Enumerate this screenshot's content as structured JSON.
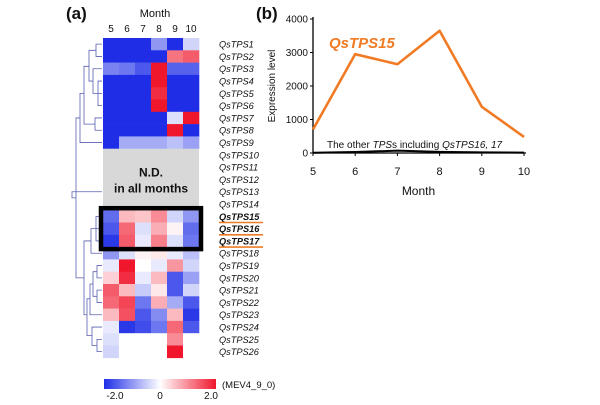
{
  "colors": {
    "accent": "#f07b24",
    "frame": "#000000",
    "nd_fill": "#d8d8d8",
    "low": "#1f2ee6",
    "mid": "#ffffff",
    "high": "#f0162c",
    "dendrogram": "#5a5fb0"
  },
  "chart_data": [
    {
      "type": "heatmap",
      "panel_label": "(a)",
      "x_title": "Month",
      "columns": [
        "5",
        "6",
        "7",
        "8",
        "9",
        "10"
      ],
      "rows": [
        {
          "gene": "QsTPS1",
          "values": [
            -2.0,
            -2.0,
            -2.0,
            -1.0,
            -2.0,
            -0.4
          ]
        },
        {
          "gene": "QsTPS2",
          "values": [
            -2.0,
            -2.0,
            -2.0,
            -2.0,
            1.2,
            1.4
          ]
        },
        {
          "gene": "QsTPS3",
          "values": [
            -1.2,
            -1.3,
            -1.6,
            2.0,
            -1.5,
            -1.5
          ]
        },
        {
          "gene": "QsTPS4",
          "values": [
            -2.0,
            -2.0,
            -2.0,
            2.0,
            -2.0,
            -2.0
          ]
        },
        {
          "gene": "QsTPS5",
          "values": [
            -2.0,
            -2.0,
            -2.0,
            1.8,
            -2.0,
            -2.0
          ]
        },
        {
          "gene": "QsTPS6",
          "values": [
            -2.0,
            -2.0,
            -2.0,
            2.0,
            -2.0,
            -2.0
          ]
        },
        {
          "gene": "QsTPS7",
          "values": [
            -2.0,
            -2.0,
            -2.0,
            -2.0,
            -0.3,
            2.0
          ]
        },
        {
          "gene": "QsTPS8",
          "values": [
            -2.0,
            -2.0,
            -2.0,
            -2.0,
            2.0,
            -2.0
          ]
        },
        {
          "gene": "QsTPS9",
          "values": [
            -2.0,
            -0.8,
            -0.8,
            -0.8,
            -0.6,
            -0.9
          ]
        },
        {
          "gene": "QsTPS10",
          "values": null
        },
        {
          "gene": "QsTPS11",
          "values": null
        },
        {
          "gene": "QsTPS12",
          "values": null
        },
        {
          "gene": "QsTPS13",
          "values": null
        },
        {
          "gene": "QsTPS14",
          "values": null
        },
        {
          "gene": "QsTPS15",
          "values": [
            -1.4,
            0.6,
            0.5,
            1.0,
            -0.4,
            -1.0
          ],
          "highlight": true
        },
        {
          "gene": "QsTPS16",
          "values": [
            -1.6,
            1.3,
            -0.3,
            0.7,
            0.1,
            -1.4
          ],
          "highlight": true
        },
        {
          "gene": "QsTPS17",
          "values": [
            -1.9,
            1.4,
            -0.2,
            1.1,
            -0.3,
            -1.3
          ],
          "highlight": true
        },
        {
          "gene": "QsTPS18",
          "values": [
            -1.0,
            -0.3,
            0.1,
            0.2,
            -0.2,
            -0.6
          ]
        },
        {
          "gene": "QsTPS19",
          "values": [
            -0.2,
            2.0,
            0.0,
            -0.2,
            0.9,
            -0.4
          ]
        },
        {
          "gene": "QsTPS20",
          "values": [
            0.4,
            1.8,
            -0.2,
            0.6,
            -1.6,
            -0.9
          ]
        },
        {
          "gene": "QsTPS21",
          "values": [
            1.4,
            0.6,
            -0.5,
            0.2,
            -1.6,
            -0.4
          ]
        },
        {
          "gene": "QsTPS22",
          "values": [
            1.3,
            1.6,
            -1.3,
            0.7,
            -0.8,
            -1.6
          ]
        },
        {
          "gene": "QsTPS23",
          "values": [
            0.6,
            1.5,
            -1.6,
            -1.1,
            0.6,
            -1.9
          ]
        },
        {
          "gene": "QsTPS24",
          "values": [
            -0.2,
            -1.9,
            -1.7,
            -1.3,
            1.3,
            -1.6
          ]
        },
        {
          "gene": "QsTPS25",
          "values": [
            -0.3,
            0.0,
            0.0,
            0.0,
            1.0,
            0.0
          ]
        },
        {
          "gene": "QsTPS26",
          "values": [
            -0.4,
            0.0,
            0.0,
            0.0,
            2.0,
            0.0
          ]
        }
      ],
      "nd_label": [
        "N.D.",
        "in all months"
      ],
      "color_scale": {
        "min": -2.0,
        "mid": 0,
        "max": 2.0,
        "ticks": [
          "-2.0",
          "0",
          "2.0"
        ],
        "note": "(MEV4_9_0)"
      }
    },
    {
      "type": "line",
      "panel_label": "(b)",
      "xlabel": "Month",
      "ylabel": "Expression level",
      "x": [
        5,
        6,
        7,
        8,
        9,
        10
      ],
      "xticks": [
        "5",
        "6",
        "7",
        "8",
        "9",
        "10"
      ],
      "yticks": [
        "0",
        "1000",
        "2000",
        "3000",
        "4000"
      ],
      "ylim": [
        0,
        4000
      ],
      "xlim": [
        5,
        10
      ],
      "series": [
        {
          "name": "QsTPS15",
          "values": [
            700,
            2950,
            2650,
            3650,
            1380,
            480
          ]
        },
        {
          "name": "other",
          "values": [
            8,
            28,
            70,
            32,
            20,
            12
          ]
        }
      ],
      "annotations": {
        "series_label": "QsTPS15",
        "other_prefix": "The other ",
        "other_ital": "TPS",
        "other_mid": "s including ",
        "other_genes": "QsTPS16, 17"
      }
    }
  ]
}
